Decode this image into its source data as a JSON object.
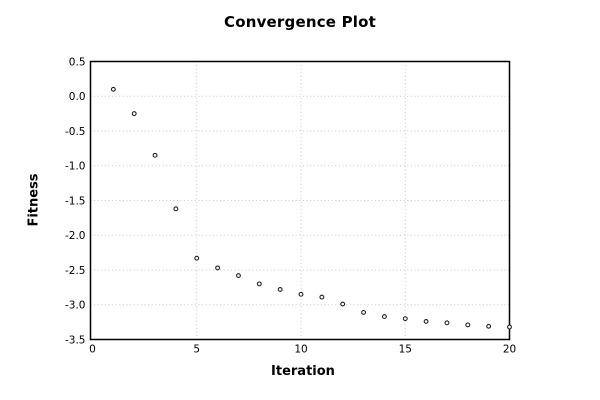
{
  "chart_data": {
    "type": "scatter",
    "title": "Convergence Plot",
    "xlabel": "Iteration",
    "ylabel": "Fitness",
    "x": [
      1,
      2,
      3,
      4,
      5,
      6,
      7,
      8,
      9,
      10,
      11,
      12,
      13,
      14,
      15,
      16,
      17,
      18,
      19,
      20
    ],
    "y": [
      0.1,
      -0.25,
      -0.85,
      -1.62,
      -2.33,
      -2.47,
      -2.58,
      -2.7,
      -2.78,
      -2.85,
      -2.89,
      -2.99,
      -3.11,
      -3.17,
      -3.2,
      -3.24,
      -3.26,
      -3.29,
      -3.31,
      -3.32
    ],
    "xlim": [
      0,
      20
    ],
    "ylim": [
      -3.5,
      0.5
    ],
    "xticks": [
      0,
      5,
      10,
      15,
      20
    ],
    "xticklabels": [
      "0",
      "5",
      "10",
      "15",
      "20"
    ],
    "yticks": [
      0.5,
      0.0,
      -0.5,
      -1.0,
      -1.5,
      -2.0,
      -2.5,
      -3.0,
      -3.5
    ],
    "yticklabels": [
      "0.5",
      "0.0",
      "-0.5",
      "-1.0",
      "-1.5",
      "-2.0",
      "-2.5",
      "-3.0",
      "-3.5"
    ],
    "grid": "dotted",
    "legend": "none",
    "marker": "open-circle",
    "colors": {
      "background": "#ffffff",
      "border": "#000000",
      "grid": "#c8c8c8",
      "marker_edge": "#222222",
      "marker_fill": "#ffffff",
      "text": "#000000"
    }
  }
}
